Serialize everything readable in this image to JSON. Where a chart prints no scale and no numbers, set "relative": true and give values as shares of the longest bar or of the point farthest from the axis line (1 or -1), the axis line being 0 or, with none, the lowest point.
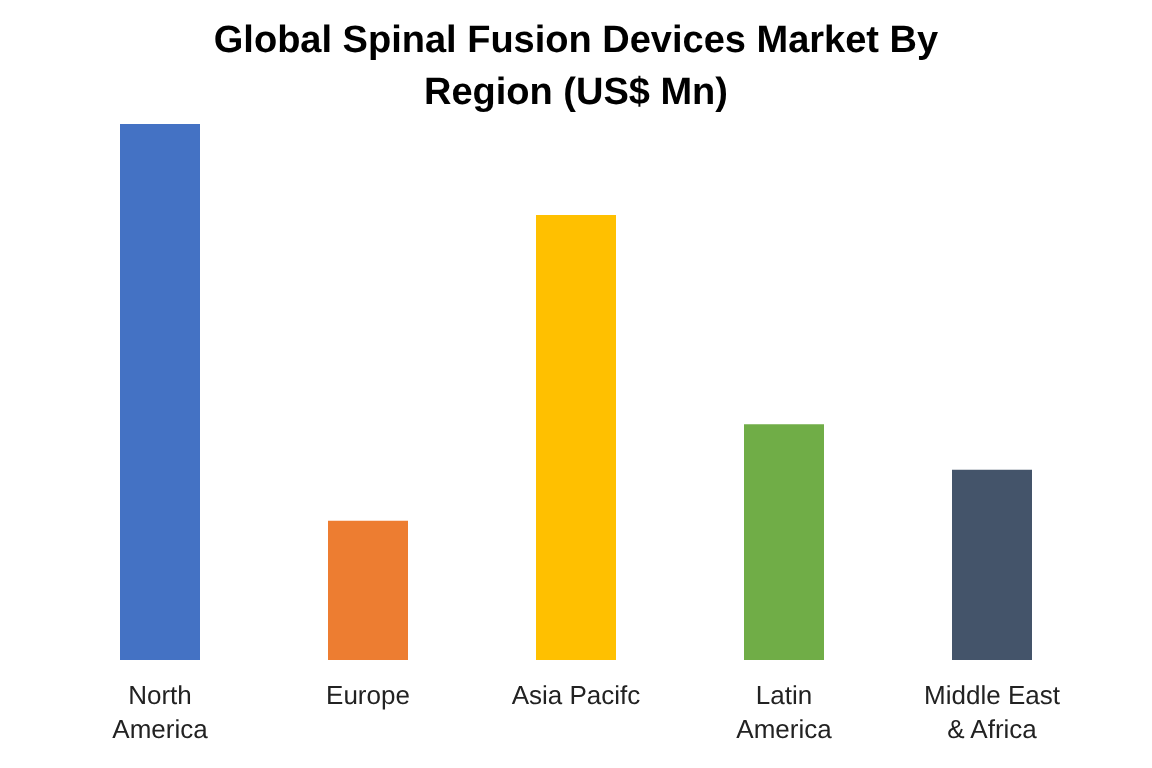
{
  "chart_data": {
    "type": "bar",
    "title": "Global Spinal Fusion Devices Market By Region (US$ Mn)",
    "categories": [
      "North America",
      "Europe",
      "Asia Pacifc",
      "Latin America",
      "Middle East & Africa"
    ],
    "values": [
      1,
      0.26,
      0.83,
      0.44,
      0.355
    ],
    "colors": [
      "#4472c4",
      "#ed7d31",
      "#ffc000",
      "#70ad47",
      "#44546a"
    ],
    "relative": true,
    "grid": false,
    "legend": false
  }
}
